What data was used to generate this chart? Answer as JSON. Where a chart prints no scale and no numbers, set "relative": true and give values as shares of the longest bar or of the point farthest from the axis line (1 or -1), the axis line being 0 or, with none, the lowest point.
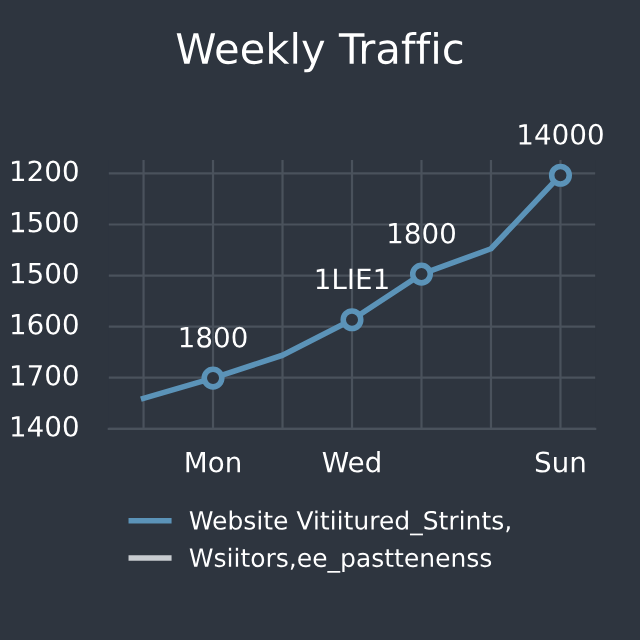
{
  "chart_data": {
    "type": "line",
    "title": "Weekly Traffic",
    "categories": [
      null,
      "Mon",
      null,
      "Wed",
      null,
      null,
      "Sun"
    ],
    "relative": true,
    "series": [
      {
        "name": "Website Vitiitured_Strints,",
        "color": "#5b93b8",
        "marker": "none",
        "values": [
          0.12,
          0.2,
          0.29,
          0.43,
          0.61,
          0.71,
          1.0
        ]
      },
      {
        "color": "#5b93b8",
        "type": "scatter",
        "marker": "circle",
        "values": [
          null,
          0.2,
          null,
          0.43,
          0.61,
          null,
          1.0
        ]
      },
      {
        "name": "Wsiitors,ee_pasttenenss",
        "color": "#c8ccd0",
        "marker": "none",
        "values": [
          null,
          null,
          null,
          null,
          null,
          null,
          null
        ]
      }
    ],
    "annotations": [
      "1200",
      "1500",
      "1500",
      "1600",
      "1700",
      "1400",
      "1800",
      "1LIE1",
      "1800",
      "14000"
    ],
    "grid": true,
    "legend": "bottom"
  }
}
